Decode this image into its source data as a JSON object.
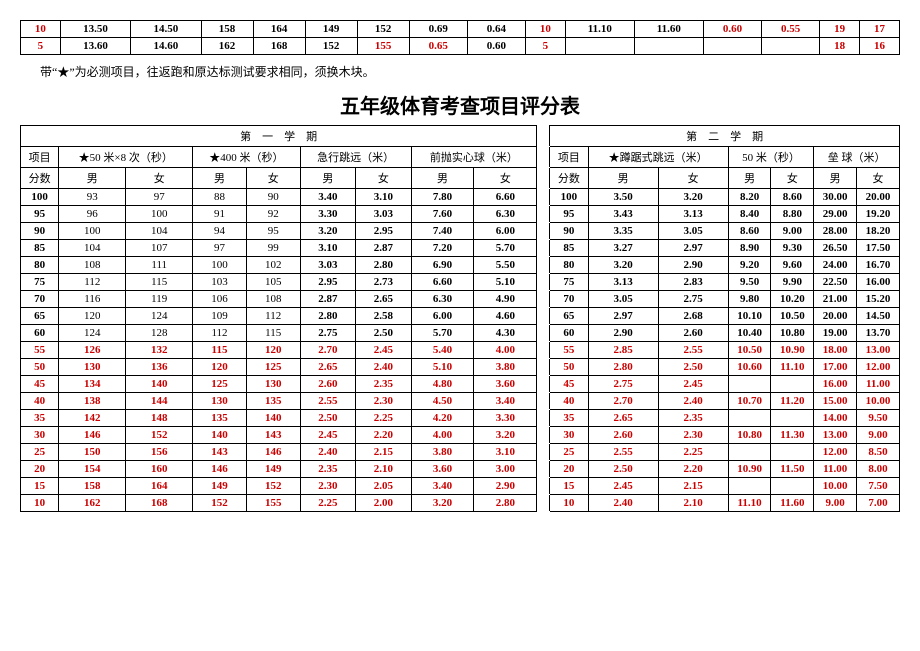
{
  "top_table": {
    "rows": [
      [
        "10",
        "13.50",
        "14.50",
        "158",
        "164",
        "149",
        "152",
        "0.69",
        "0.64",
        "10",
        "11.10",
        "11.60",
        "0.60",
        "0.55",
        "19",
        "17"
      ],
      [
        "5",
        "13.60",
        "14.60",
        "162",
        "168",
        "152",
        "155",
        "0.65",
        "0.60",
        "5",
        "",
        "",
        "",
        "",
        "18",
        "16"
      ]
    ],
    "red_cols_r0": [
      0,
      9,
      12,
      13,
      14,
      15
    ],
    "red_cols_r1": [
      0,
      6,
      7,
      9,
      14,
      15
    ]
  },
  "note": "带“★”为必测项目，往返跑和原达标测试要求相同，须换木块。",
  "title": "五年级体育考查项目评分表",
  "semester1": "第　一　学　期",
  "semester2": "第　二　学　期",
  "headers1": [
    "项目",
    "★50 米×8 次（秒）",
    "★400 米（秒）",
    "急行跳远（米）",
    "前抛实心球（米）"
  ],
  "headers2": [
    "项目",
    "★蹲踞式跳远（米）",
    "50 米（秒）",
    "垒 球（米）"
  ],
  "sub": [
    "分数",
    "男",
    "女",
    "男",
    "女",
    "男",
    "女",
    "男",
    "女",
    "分数",
    "男",
    "女",
    "男",
    "女",
    "男",
    "女"
  ],
  "rows": [
    {
      "s": "100",
      "c": [
        "93",
        "97",
        "88",
        "90",
        "3.40",
        "3.10",
        "7.80",
        "6.60",
        "100",
        "3.50",
        "3.20",
        "8.20",
        "8.60",
        "30.00",
        "20.00"
      ],
      "red": false
    },
    {
      "s": "95",
      "c": [
        "96",
        "100",
        "91",
        "92",
        "3.30",
        "3.03",
        "7.60",
        "6.30",
        "95",
        "3.43",
        "3.13",
        "8.40",
        "8.80",
        "29.00",
        "19.20"
      ],
      "red": false
    },
    {
      "s": "90",
      "c": [
        "100",
        "104",
        "94",
        "95",
        "3.20",
        "2.95",
        "7.40",
        "6.00",
        "90",
        "3.35",
        "3.05",
        "8.60",
        "9.00",
        "28.00",
        "18.20"
      ],
      "red": false
    },
    {
      "s": "85",
      "c": [
        "104",
        "107",
        "97",
        "99",
        "3.10",
        "2.87",
        "7.20",
        "5.70",
        "85",
        "3.27",
        "2.97",
        "8.90",
        "9.30",
        "26.50",
        "17.50"
      ],
      "red": false
    },
    {
      "s": "80",
      "c": [
        "108",
        "111",
        "100",
        "102",
        "3.03",
        "2.80",
        "6.90",
        "5.50",
        "80",
        "3.20",
        "2.90",
        "9.20",
        "9.60",
        "24.00",
        "16.70"
      ],
      "red": false
    },
    {
      "s": "75",
      "c": [
        "112",
        "115",
        "103",
        "105",
        "2.95",
        "2.73",
        "6.60",
        "5.10",
        "75",
        "3.13",
        "2.83",
        "9.50",
        "9.90",
        "22.50",
        "16.00"
      ],
      "red": false
    },
    {
      "s": "70",
      "c": [
        "116",
        "119",
        "106",
        "108",
        "2.87",
        "2.65",
        "6.30",
        "4.90",
        "70",
        "3.05",
        "2.75",
        "9.80",
        "10.20",
        "21.00",
        "15.20"
      ],
      "red": false
    },
    {
      "s": "65",
      "c": [
        "120",
        "124",
        "109",
        "112",
        "2.80",
        "2.58",
        "6.00",
        "4.60",
        "65",
        "2.97",
        "2.68",
        "10.10",
        "10.50",
        "20.00",
        "14.50"
      ],
      "red": false
    },
    {
      "s": "60",
      "c": [
        "124",
        "128",
        "112",
        "115",
        "2.75",
        "2.50",
        "5.70",
        "4.30",
        "60",
        "2.90",
        "2.60",
        "10.40",
        "10.80",
        "19.00",
        "13.70"
      ],
      "red": false
    },
    {
      "s": "55",
      "c": [
        "126",
        "132",
        "115",
        "120",
        "2.70",
        "2.45",
        "5.40",
        "4.00",
        "55",
        "2.85",
        "2.55",
        "10.50",
        "10.90",
        "18.00",
        "13.00"
      ],
      "red": true
    },
    {
      "s": "50",
      "c": [
        "130",
        "136",
        "120",
        "125",
        "2.65",
        "2.40",
        "5.10",
        "3.80",
        "50",
        "2.80",
        "2.50",
        "10.60",
        "11.10",
        "17.00",
        "12.00"
      ],
      "red": true
    },
    {
      "s": "45",
      "c": [
        "134",
        "140",
        "125",
        "130",
        "2.60",
        "2.35",
        "4.80",
        "3.60",
        "45",
        "2.75",
        "2.45",
        "",
        "",
        "16.00",
        "11.00"
      ],
      "red": true
    },
    {
      "s": "40",
      "c": [
        "138",
        "144",
        "130",
        "135",
        "2.55",
        "2.30",
        "4.50",
        "3.40",
        "40",
        "2.70",
        "2.40",
        "10.70",
        "11.20",
        "15.00",
        "10.00"
      ],
      "red": true
    },
    {
      "s": "35",
      "c": [
        "142",
        "148",
        "135",
        "140",
        "2.50",
        "2.25",
        "4.20",
        "3.30",
        "35",
        "2.65",
        "2.35",
        "",
        "",
        "14.00",
        "9.50"
      ],
      "red": true
    },
    {
      "s": "30",
      "c": [
        "146",
        "152",
        "140",
        "143",
        "2.45",
        "2.20",
        "4.00",
        "3.20",
        "30",
        "2.60",
        "2.30",
        "10.80",
        "11.30",
        "13.00",
        "9.00"
      ],
      "red": true
    },
    {
      "s": "25",
      "c": [
        "150",
        "156",
        "143",
        "146",
        "2.40",
        "2.15",
        "3.80",
        "3.10",
        "25",
        "2.55",
        "2.25",
        "",
        "",
        "12.00",
        "8.50"
      ],
      "red": true
    },
    {
      "s": "20",
      "c": [
        "154",
        "160",
        "146",
        "149",
        "2.35",
        "2.10",
        "3.60",
        "3.00",
        "20",
        "2.50",
        "2.20",
        "10.90",
        "11.50",
        "11.00",
        "8.00"
      ],
      "red": true
    },
    {
      "s": "15",
      "c": [
        "158",
        "164",
        "149",
        "152",
        "2.30",
        "2.05",
        "3.40",
        "2.90",
        "15",
        "2.45",
        "2.15",
        "",
        "",
        "10.00",
        "7.50"
      ],
      "red": true
    },
    {
      "s": "10",
      "c": [
        "162",
        "168",
        "152",
        "155",
        "2.25",
        "2.00",
        "3.20",
        "2.80",
        "10",
        "2.40",
        "2.10",
        "11.10",
        "11.60",
        "9.00",
        "7.00"
      ],
      "red": true
    }
  ]
}
